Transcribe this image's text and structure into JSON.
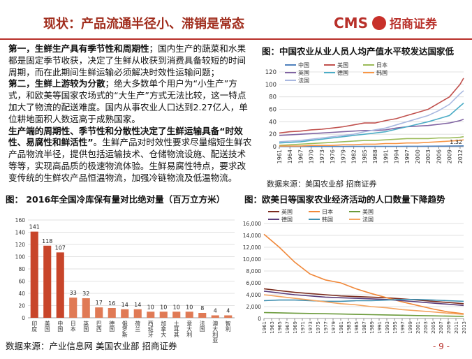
{
  "header": {
    "title": "现状：产品流通半径小、滞销是常态",
    "logo_text": "CMS",
    "logo_name": "招商证券"
  },
  "text": {
    "paragraphs": [
      [
        {
          "text": "第一，生鲜生产具有季节性和周期性",
          "bold": true
        },
        {
          "text": "；国内生产的蔬菜和水果都是固定季节收获，决定了生鲜从收获到消费具备较短的时间周期，而在此期间生鲜运输必须解决时效性运输问题；",
          "bold": false
        }
      ],
      [
        {
          "text": "第二，生鲜上游较为分散",
          "bold": true
        },
        {
          "text": "；绝大多数单个用户为“小生产”方式，和欧美等国家农场式的“大生产”方式无法比较，这一特点加大了物流的配送难度。国内从事农业人口达到2.27亿人，单位耕地面积人数远高于成熟国家。",
          "bold": false
        }
      ],
      [
        {
          "text": "生产端的周期性、季节性和分散性决定了生鲜运输具备“时效性、易腐性和鲜活性”",
          "bold": true
        },
        {
          "text": "。生鲜产品对时效性要求尽量缩短生鲜农产品物流半径，提供包括运输技术、仓储物流设施、配送技术等等，实现高品质的极速物流体验。生鲜易腐性特点，要求改变传统的生鲜农产品恒温物流，加强冷链物流及低温物流。",
          "bold": false
        }
      ]
    ]
  },
  "source_top": "数据来源：美国农业部 招商证券",
  "source_bottom": "数据来源：产业信息网 美国农业部 招商证券",
  "page_number": "- 9 -",
  "chart_data": [
    {
      "type": "line",
      "title": "图：中国农业从业人员人均产值水平较发达国家低",
      "x": [
        1961,
        1964,
        1967,
        1970,
        1973,
        1976,
        1979,
        1982,
        1985,
        1988,
        1991,
        1994,
        1997,
        2000,
        2003,
        2006,
        2009,
        2012,
        2013
      ],
      "xlim": [
        1961,
        2013
      ],
      "xticks": [
        1961,
        1964,
        1967,
        1970,
        1973,
        1976,
        1979,
        1982,
        1985,
        1988,
        1991,
        1994,
        1997,
        2000,
        2003,
        2006,
        2009,
        2012
      ],
      "ylim": [
        0,
        120
      ],
      "yticks": [
        0,
        20,
        40,
        60,
        80,
        100,
        120
      ],
      "grid": true,
      "legend": "top-left",
      "annotation": "1.32",
      "series": [
        {
          "name": "中国",
          "color": "#4f81bd",
          "values": [
            0.2,
            0.2,
            0.2,
            0.2,
            0.3,
            0.3,
            0.3,
            0.4,
            0.4,
            0.5,
            0.5,
            0.6,
            0.7,
            0.7,
            0.8,
            0.9,
            1.0,
            1.2,
            1.32
          ]
        },
        {
          "name": "美国",
          "color": "#c0504d",
          "values": [
            22,
            24,
            25,
            27,
            28,
            30,
            32,
            35,
            38,
            38,
            42,
            45,
            50,
            55,
            60,
            70,
            80,
            100,
            110
          ]
        },
        {
          "name": "日本",
          "color": "#9bbb59",
          "values": [
            2,
            3,
            4,
            5,
            6,
            7,
            8,
            9,
            10,
            10,
            11,
            12,
            13,
            13,
            13,
            14,
            14,
            15,
            16
          ]
        },
        {
          "name": "英国",
          "color": "#8064a2",
          "values": [
            18,
            19,
            20,
            21,
            22,
            23,
            24,
            25,
            26,
            26,
            27,
            30,
            32,
            33,
            34,
            36,
            38,
            42,
            44
          ]
        },
        {
          "name": "德国",
          "color": "#4bacc6",
          "values": [
            6,
            7,
            8,
            10,
            12,
            14,
            16,
            18,
            20,
            22,
            24,
            28,
            32,
            36,
            40,
            45,
            50,
            65,
            70
          ]
        },
        {
          "name": "韩国",
          "color": "#f79646",
          "values": [
            1,
            1,
            1,
            2,
            2,
            2,
            3,
            3,
            4,
            4,
            5,
            5,
            6,
            6,
            7,
            8,
            9,
            10,
            11
          ]
        },
        {
          "name": "法国",
          "color": "#a9b8e0",
          "values": [
            8,
            9,
            10,
            12,
            14,
            16,
            18,
            20,
            24,
            27,
            30,
            35,
            40,
            45,
            50,
            58,
            68,
            85,
            90
          ]
        }
      ]
    },
    {
      "type": "bar",
      "title": "图： 2016年全国冷库保有量对比绝对量（百万立方米）",
      "categories": [
        "印度",
        "美国",
        "中国",
        "日本",
        "英国",
        "巴西",
        "德国",
        "俄罗斯",
        "荷兰",
        "西班牙",
        "加拿大",
        "土耳其",
        "意大利",
        "法国",
        "澳大利亚",
        "智利"
      ],
      "values": [
        141,
        118,
        107,
        33,
        32,
        17,
        16,
        14,
        14,
        10,
        10,
        10,
        10,
        8,
        4,
        4
      ],
      "colors": [
        "#c8452a",
        "#c8452a",
        "#c8452a",
        "#e07a55",
        "#e07a55",
        "#e07a55",
        "#e07a55",
        "#e07a55",
        "#e07a55",
        "#e07a55",
        "#e07a55",
        "#e07a55",
        "#e07a55",
        "#e07a55",
        "#e07a55",
        "#e07a55"
      ],
      "ylim": [
        0,
        160
      ],
      "yticks": [
        0,
        20,
        40,
        60,
        80,
        100,
        120,
        140,
        160
      ],
      "grid": true
    },
    {
      "type": "line",
      "title": "图：欧美日等国家农业经济活动的人口数量下降趋势",
      "x": [
        1961,
        1965,
        1969,
        1973,
        1977,
        1981,
        1985,
        1989,
        1993,
        1997,
        2001,
        2005,
        2009,
        2013
      ],
      "xlim": [
        1961,
        2013
      ],
      "xticks": [
        1961,
        1963,
        1965,
        1967,
        1969,
        1971,
        1973,
        1975,
        1977,
        1979,
        1981,
        1983,
        1985,
        1987,
        1989,
        1991,
        1993,
        1995,
        1997,
        1999,
        2001,
        2003,
        2005,
        2007,
        2009,
        2011,
        2013
      ],
      "ylim": [
        0,
        16000
      ],
      "yticks": [
        0,
        {
          "value": 2000,
          "label": "2,000"
        },
        {
          "value": 4000,
          "label": "4,000"
        },
        {
          "value": 6000,
          "label": "6,000"
        },
        {
          "value": 8000,
          "label": "8,000"
        },
        {
          "value": 10000,
          "label": "10,000"
        },
        {
          "value": 12000,
          "label": "12,000"
        },
        {
          "value": 14000,
          "label": "14,000"
        },
        {
          "value": 16000,
          "label": "16,000"
        }
      ],
      "grid": true,
      "legend": "top",
      "series": [
        {
          "name": "英国",
          "color": "#7b2c1e",
          "values": [
            5000,
            4700,
            4400,
            4200,
            4000,
            3800,
            3700,
            3600,
            3500,
            3300,
            3100,
            2900,
            2700,
            2500
          ]
        },
        {
          "name": "日本",
          "color": "#f0883a",
          "values": [
            14200,
            12000,
            9500,
            7500,
            6500,
            6000,
            5000,
            4200,
            3500,
            2800,
            2200,
            1600,
            1100,
            800
          ]
        },
        {
          "name": "美国",
          "color": "#6a9a3a",
          "values": [
            1000,
            950,
            900,
            850,
            800,
            750,
            700,
            650,
            600,
            550,
            500,
            450,
            400,
            350
          ]
        },
        {
          "name": "德国",
          "color": "#5a3d7a",
          "values": [
            4600,
            4300,
            4000,
            3800,
            3600,
            3500,
            3400,
            3300,
            3200,
            3000,
            2800,
            2600,
            2400,
            2200
          ]
        },
        {
          "name": "韩国",
          "color": "#3f8fb0",
          "values": [
            3000,
            3100,
            3100,
            3000,
            2900,
            2900,
            3000,
            3000,
            3100,
            3200,
            3200,
            3100,
            3000,
            2900
          ]
        },
        {
          "name": "法国",
          "color": "#f4a460",
          "values": [
            4000,
            3700,
            3400,
            3100,
            2800,
            2500,
            2300,
            2000,
            1800,
            1500,
            1300,
            1100,
            900,
            700
          ]
        }
      ]
    }
  ]
}
